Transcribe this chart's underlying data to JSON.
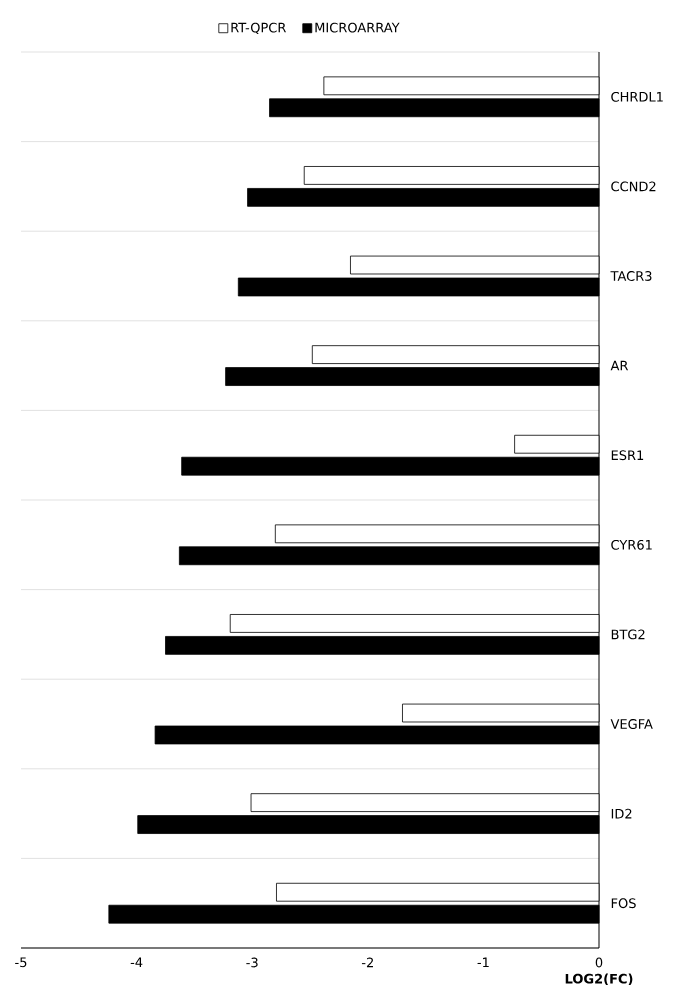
{
  "chart_data": {
    "type": "bar",
    "orientation": "horizontal",
    "xlabel": "LOG2(FC)",
    "categories": [
      "CHRDL1",
      "CCND2",
      "TACR3",
      "AR",
      "ESR1",
      "CYR61",
      "BTG2",
      "VEGFA",
      "ID2",
      "FOS"
    ],
    "series": [
      {
        "name": "RT-QPCR",
        "color": "#ffffff",
        "values": [
          -2.38,
          -2.55,
          -2.15,
          -2.48,
          -0.73,
          -2.8,
          -3.19,
          -1.7,
          -3.01,
          -2.79
        ]
      },
      {
        "name": "MICROARRAY",
        "color": "#000000",
        "values": [
          -2.85,
          -3.04,
          -3.12,
          -3.23,
          -3.61,
          -3.63,
          -3.75,
          -3.84,
          -3.99,
          -4.24
        ]
      }
    ],
    "xlim": [
      -5,
      0
    ],
    "xticks": [
      -5,
      -4,
      -3,
      -2,
      -1,
      0
    ],
    "grid": "y",
    "legend": "top"
  }
}
